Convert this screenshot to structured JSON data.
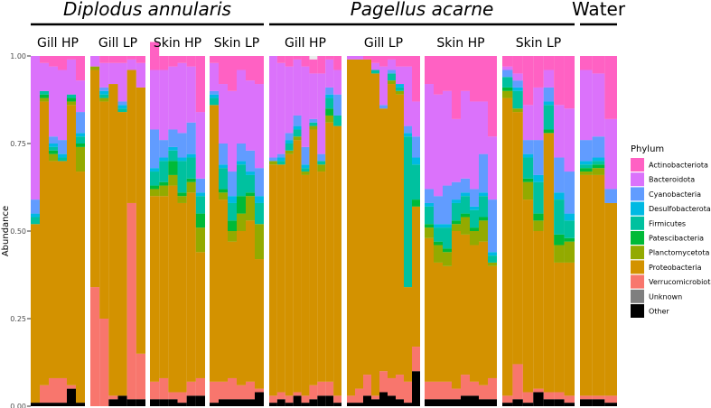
{
  "chart_data": {
    "type": "bar",
    "stacked": true,
    "ylabel": "Abundance",
    "ylim": [
      0,
      1
    ],
    "yticks": [
      "0.00",
      "0.25",
      "0.50",
      "0.75",
      "1.00"
    ],
    "legend": {
      "title": "Phylum",
      "placement": "right"
    },
    "species": [
      {
        "name": "Diplodus annularis",
        "panels": [
          0,
          1,
          2,
          3
        ]
      },
      {
        "name": "Pagellus acarne",
        "panels": [
          4,
          5,
          6,
          7
        ]
      },
      {
        "name": "Water",
        "panels": [
          8
        ]
      }
    ],
    "categories": [
      "Actinobacteriota",
      "Bacteroidota",
      "Cyanobacteria",
      "Desulfobacterota",
      "Firmicutes",
      "Patescibacteria",
      "Planctomycetota",
      "Proteobacteria",
      "Verrucomicrobiota",
      "Unknown",
      "Other"
    ],
    "colors": [
      "#FF61C3",
      "#DB72FB",
      "#619CFF",
      "#00B9E3",
      "#00C19F",
      "#00BA38",
      "#93AA00",
      "#D39200",
      "#F8766D",
      "#7F7F7F",
      "#000000"
    ],
    "panels": [
      {
        "label": "Gill HP",
        "samples": [
          [
            0.0,
            0.41,
            0.04,
            0.01,
            0.02,
            0.0,
            0.0,
            0.51,
            0.0,
            0.0,
            0.01
          ],
          [
            0.02,
            0.08,
            0.0,
            0.0,
            0.01,
            0.01,
            0.01,
            0.81,
            0.05,
            0.0,
            0.01
          ],
          [
            0.03,
            0.2,
            0.02,
            0.01,
            0.01,
            0.01,
            0.02,
            0.62,
            0.07,
            0.0,
            0.01
          ],
          [
            0.04,
            0.2,
            0.04,
            0.01,
            0.01,
            0.0,
            0.0,
            0.62,
            0.07,
            0.0,
            0.01
          ],
          [
            0.01,
            0.1,
            0.0,
            0.0,
            0.01,
            0.01,
            0.01,
            0.8,
            0.01,
            0.0,
            0.05
          ],
          [
            0.07,
            0.09,
            0.06,
            0.01,
            0.02,
            0.01,
            0.07,
            0.66,
            0.0,
            0.0,
            0.01
          ]
        ]
      },
      {
        "label": "Gill LP",
        "samples": [
          [
            0.0,
            0.03,
            0.0,
            0.0,
            0.0,
            0.0,
            0.01,
            0.62,
            0.34,
            0.0,
            0.0
          ],
          [
            0.02,
            0.07,
            0.01,
            0.01,
            0.01,
            0.0,
            0.01,
            0.62,
            0.25,
            0.0,
            0.0
          ],
          [
            0.02,
            0.06,
            0.0,
            0.0,
            0.0,
            0.0,
            0.0,
            0.89,
            0.01,
            0.0,
            0.02
          ],
          [
            0.02,
            0.11,
            0.01,
            0.01,
            0.01,
            0.0,
            0.0,
            0.81,
            0.0,
            0.0,
            0.03
          ],
          [
            0.01,
            0.03,
            0.0,
            0.0,
            0.0,
            0.0,
            0.0,
            0.38,
            0.56,
            0.0,
            0.02
          ],
          [
            0.02,
            0.07,
            0.0,
            0.0,
            0.0,
            0.0,
            0.0,
            0.76,
            0.13,
            0.0,
            0.02
          ]
        ]
      },
      {
        "label": "Skin HP",
        "samples": [
          [
            0.08,
            0.17,
            0.11,
            0.01,
            0.04,
            0.01,
            0.02,
            0.53,
            0.05,
            0.0,
            0.02
          ],
          [
            0.04,
            0.2,
            0.05,
            0.01,
            0.06,
            0.01,
            0.03,
            0.52,
            0.06,
            0.0,
            0.02
          ],
          [
            0.03,
            0.18,
            0.05,
            0.01,
            0.03,
            0.04,
            0.03,
            0.59,
            0.02,
            0.0,
            0.02
          ],
          [
            0.02,
            0.2,
            0.07,
            0.01,
            0.09,
            0.01,
            0.02,
            0.54,
            0.03,
            0.0,
            0.01
          ],
          [
            0.03,
            0.16,
            0.09,
            0.01,
            0.06,
            0.01,
            0.03,
            0.54,
            0.04,
            0.0,
            0.03
          ],
          [
            0.16,
            0.19,
            0.04,
            0.01,
            0.05,
            0.04,
            0.07,
            0.36,
            0.05,
            0.0,
            0.03
          ]
        ]
      },
      {
        "label": "Skin LP",
        "samples": [
          [
            0.02,
            0.08,
            0.01,
            0.01,
            0.02,
            0.0,
            0.0,
            0.79,
            0.06,
            0.0,
            0.01
          ],
          [
            0.08,
            0.17,
            0.06,
            0.01,
            0.06,
            0.01,
            0.02,
            0.52,
            0.05,
            0.0,
            0.02
          ],
          [
            0.1,
            0.23,
            0.07,
            0.02,
            0.05,
            0.03,
            0.03,
            0.39,
            0.06,
            0.0,
            0.02
          ],
          [
            0.04,
            0.21,
            0.05,
            0.01,
            0.09,
            0.05,
            0.05,
            0.44,
            0.04,
            0.0,
            0.02
          ],
          [
            0.07,
            0.2,
            0.06,
            0.01,
            0.05,
            0.01,
            0.07,
            0.46,
            0.05,
            0.0,
            0.02
          ],
          [
            0.08,
            0.24,
            0.08,
            0.02,
            0.06,
            0.0,
            0.1,
            0.37,
            0.01,
            0.0,
            0.04
          ]
        ]
      },
      {
        "label": "Gill HP",
        "samples": [
          [
            0.0,
            0.29,
            0.01,
            0.0,
            0.0,
            0.0,
            0.01,
            0.66,
            0.02,
            0.0,
            0.01
          ],
          [
            0.02,
            0.26,
            0.01,
            0.01,
            0.01,
            0.0,
            0.0,
            0.65,
            0.02,
            0.0,
            0.02
          ],
          [
            0.03,
            0.19,
            0.02,
            0.01,
            0.02,
            0.0,
            0.01,
            0.69,
            0.02,
            0.0,
            0.01
          ],
          [
            0.01,
            0.16,
            0.03,
            0.01,
            0.02,
            0.0,
            0.01,
            0.72,
            0.01,
            0.0,
            0.03
          ],
          [
            0.03,
            0.23,
            0.05,
            0.01,
            0.01,
            0.0,
            0.01,
            0.63,
            0.02,
            0.0,
            0.01
          ],
          [
            0.04,
            0.13,
            0.01,
            0.0,
            0.01,
            0.0,
            0.01,
            0.73,
            0.04,
            0.0,
            0.02
          ],
          [
            0.05,
            0.23,
            0.02,
            0.0,
            0.01,
            0.0,
            0.02,
            0.6,
            0.04,
            0.0,
            0.03
          ],
          [
            0.01,
            0.08,
            0.02,
            0.01,
            0.03,
            0.02,
            0.02,
            0.74,
            0.04,
            0.0,
            0.03
          ],
          [
            0.04,
            0.07,
            0.06,
            0.0,
            0.03,
            0.0,
            0.0,
            0.77,
            0.02,
            0.0,
            0.01
          ]
        ]
      },
      {
        "label": "Gill LP",
        "samples": [
          [
            0.0,
            0.01,
            0.0,
            0.0,
            0.0,
            0.0,
            0.0,
            0.96,
            0.02,
            0.0,
            0.01
          ],
          [
            0.0,
            0.01,
            0.0,
            0.0,
            0.0,
            0.0,
            0.0,
            0.94,
            0.04,
            0.0,
            0.01
          ],
          [
            0.01,
            0.0,
            0.0,
            0.0,
            0.0,
            0.0,
            0.0,
            0.9,
            0.06,
            0.0,
            0.03
          ],
          [
            0.02,
            0.02,
            0.0,
            0.0,
            0.01,
            0.0,
            0.0,
            0.92,
            0.01,
            0.0,
            0.02
          ],
          [
            0.03,
            0.11,
            0.01,
            0.0,
            0.0,
            0.0,
            0.0,
            0.75,
            0.06,
            0.0,
            0.04
          ],
          [
            0.01,
            0.03,
            0.01,
            0.0,
            0.02,
            0.0,
            0.01,
            0.84,
            0.05,
            0.0,
            0.03
          ],
          [
            0.03,
            0.05,
            0.0,
            0.01,
            0.01,
            0.0,
            0.01,
            0.8,
            0.07,
            0.0,
            0.02
          ],
          [
            0.03,
            0.17,
            0.02,
            0.01,
            0.43,
            0.0,
            0.0,
            0.27,
            0.06,
            0.0,
            0.01
          ],
          [
            0.13,
            0.1,
            0.06,
            0.02,
            0.1,
            0.02,
            0.0,
            0.4,
            0.07,
            0.0,
            0.1
          ]
        ]
      },
      {
        "label": "Skin HP",
        "samples": [
          [
            0.08,
            0.3,
            0.04,
            0.01,
            0.05,
            0.01,
            0.03,
            0.41,
            0.05,
            0.0,
            0.02
          ],
          [
            0.11,
            0.29,
            0.08,
            0.01,
            0.04,
            0.01,
            0.05,
            0.34,
            0.05,
            0.0,
            0.02
          ],
          [
            0.1,
            0.27,
            0.11,
            0.01,
            0.06,
            0.01,
            0.04,
            0.33,
            0.05,
            0.0,
            0.02
          ],
          [
            0.18,
            0.18,
            0.05,
            0.01,
            0.05,
            0.01,
            0.02,
            0.45,
            0.03,
            0.0,
            0.02
          ],
          [
            0.1,
            0.25,
            0.04,
            0.01,
            0.05,
            0.01,
            0.05,
            0.4,
            0.06,
            0.0,
            0.03
          ],
          [
            0.13,
            0.25,
            0.05,
            0.01,
            0.05,
            0.01,
            0.04,
            0.39,
            0.04,
            0.0,
            0.03
          ],
          [
            0.13,
            0.15,
            0.11,
            0.01,
            0.06,
            0.01,
            0.06,
            0.41,
            0.04,
            0.0,
            0.02
          ],
          [
            0.23,
            0.18,
            0.15,
            0.01,
            0.02,
            0.0,
            0.01,
            0.32,
            0.06,
            0.0,
            0.02
          ]
        ]
      },
      {
        "label": "Skin LP",
        "samples": [
          [
            0.03,
            0.01,
            0.02,
            0.0,
            0.03,
            0.01,
            0.02,
            0.85,
            0.02,
            0.0,
            0.01
          ],
          [
            0.05,
            0.02,
            0.02,
            0.01,
            0.05,
            0.0,
            0.01,
            0.72,
            0.1,
            0.0,
            0.02
          ],
          [
            0.14,
            0.1,
            0.04,
            0.01,
            0.06,
            0.01,
            0.05,
            0.55,
            0.03,
            0.0,
            0.01
          ],
          [
            0.09,
            0.15,
            0.1,
            0.02,
            0.09,
            0.02,
            0.03,
            0.45,
            0.01,
            0.0,
            0.04
          ],
          [
            0.04,
            0.05,
            0.04,
            0.01,
            0.07,
            0.01,
            0.0,
            0.74,
            0.02,
            0.0,
            0.02
          ],
          [
            0.14,
            0.15,
            0.1,
            0.02,
            0.1,
            0.03,
            0.05,
            0.37,
            0.02,
            0.0,
            0.02
          ],
          [
            0.15,
            0.18,
            0.12,
            0.02,
            0.05,
            0.01,
            0.06,
            0.38,
            0.02,
            0.0,
            0.01
          ]
        ]
      },
      {
        "label": "",
        "samples": [
          [
            0.04,
            0.2,
            0.06,
            0.01,
            0.01,
            0.01,
            0.01,
            0.63,
            0.01,
            0.0,
            0.02
          ],
          [
            0.05,
            0.18,
            0.06,
            0.01,
            0.01,
            0.01,
            0.02,
            0.63,
            0.01,
            0.0,
            0.02
          ],
          [
            0.18,
            0.2,
            0.04,
            0.0,
            0.0,
            0.0,
            0.0,
            0.55,
            0.02,
            0.0,
            0.01
          ]
        ]
      }
    ]
  }
}
